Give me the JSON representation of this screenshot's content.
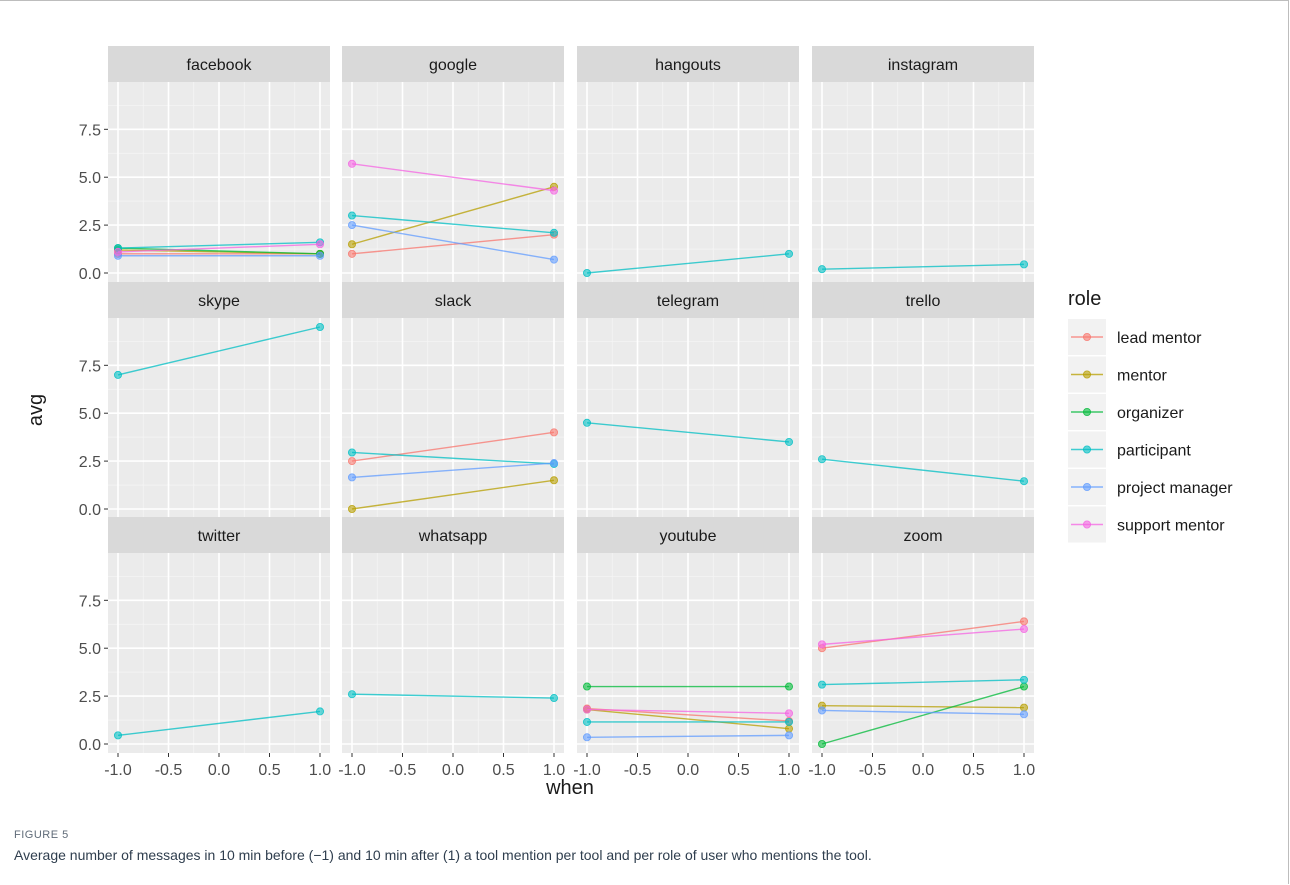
{
  "chart_data": {
    "type": "line",
    "facet_wrap": "tool",
    "ncol": 4,
    "xlabel": "when",
    "ylabel": "avg",
    "xlim": [
      -1.0,
      1.0
    ],
    "ylim": [
      0.0,
      9.5
    ],
    "x_ticks": [
      -1.0,
      -0.5,
      0.0,
      0.5,
      1.0
    ],
    "x_tick_labels": [
      "-1.0",
      "-0.5",
      "0.0",
      "0.5",
      "1.0"
    ],
    "y_ticks": [
      0.0,
      2.5,
      5.0,
      7.5
    ],
    "y_tick_labels": [
      "0.0",
      "2.5",
      "5.0",
      "7.5"
    ],
    "grid": true,
    "legend": {
      "title": "role",
      "position": "right",
      "entries": [
        {
          "role": "lead mentor",
          "color": "#F8766D"
        },
        {
          "role": "mentor",
          "color": "#B79F00"
        },
        {
          "role": "organizer",
          "color": "#00BA38"
        },
        {
          "role": "participant",
          "color": "#00BFC4"
        },
        {
          "role": "project manager",
          "color": "#619CFF"
        },
        {
          "role": "support mentor",
          "color": "#F564E3"
        }
      ]
    },
    "facets": [
      {
        "tool": "facebook",
        "series": [
          {
            "role": "lead mentor",
            "values": [
              1.0,
              1.0
            ]
          },
          {
            "role": "mentor",
            "values": [
              1.2,
              1.0
            ]
          },
          {
            "role": "organizer",
            "values": [
              1.3,
              1.0
            ]
          },
          {
            "role": "participant",
            "values": [
              1.3,
              1.6
            ]
          },
          {
            "role": "project manager",
            "values": [
              0.9,
              0.9
            ]
          },
          {
            "role": "support mentor",
            "values": [
              1.1,
              1.5
            ]
          }
        ]
      },
      {
        "tool": "google",
        "series": [
          {
            "role": "lead mentor",
            "values": [
              1.0,
              2.0
            ]
          },
          {
            "role": "mentor",
            "values": [
              1.5,
              4.5
            ]
          },
          {
            "role": "participant",
            "values": [
              3.0,
              2.1
            ]
          },
          {
            "role": "project manager",
            "values": [
              2.5,
              0.7
            ]
          },
          {
            "role": "support mentor",
            "values": [
              5.7,
              4.3
            ]
          }
        ]
      },
      {
        "tool": "hangouts",
        "series": [
          {
            "role": "participant",
            "values": [
              0.0,
              1.0
            ]
          }
        ]
      },
      {
        "tool": "instagram",
        "series": [
          {
            "role": "participant",
            "values": [
              0.2,
              0.45
            ]
          }
        ]
      },
      {
        "tool": "skype",
        "series": [
          {
            "role": "participant",
            "values": [
              7.0,
              9.5
            ]
          }
        ]
      },
      {
        "tool": "slack",
        "series": [
          {
            "role": "lead mentor",
            "values": [
              2.5,
              4.0
            ]
          },
          {
            "role": "mentor",
            "values": [
              0.0,
              1.5
            ]
          },
          {
            "role": "participant",
            "values": [
              2.95,
              2.35
            ]
          },
          {
            "role": "project manager",
            "values": [
              1.65,
              2.4
            ]
          }
        ]
      },
      {
        "tool": "telegram",
        "series": [
          {
            "role": "participant",
            "values": [
              4.5,
              3.5
            ]
          }
        ]
      },
      {
        "tool": "trello",
        "series": [
          {
            "role": "participant",
            "values": [
              2.6,
              1.45
            ]
          }
        ]
      },
      {
        "tool": "twitter",
        "series": [
          {
            "role": "participant",
            "values": [
              0.45,
              1.7
            ]
          }
        ]
      },
      {
        "tool": "whatsapp",
        "series": [
          {
            "role": "participant",
            "values": [
              2.6,
              2.4
            ]
          }
        ]
      },
      {
        "tool": "youtube",
        "series": [
          {
            "role": "lead mentor",
            "values": [
              1.85,
              1.2
            ]
          },
          {
            "role": "mentor",
            "values": [
              1.8,
              0.8
            ]
          },
          {
            "role": "organizer",
            "values": [
              3.0,
              3.0
            ]
          },
          {
            "role": "participant",
            "values": [
              1.15,
              1.15
            ]
          },
          {
            "role": "project manager",
            "values": [
              0.35,
              0.45
            ]
          },
          {
            "role": "support mentor",
            "values": [
              1.8,
              1.6
            ]
          }
        ]
      },
      {
        "tool": "zoom",
        "series": [
          {
            "role": "lead mentor",
            "values": [
              5.0,
              6.4
            ]
          },
          {
            "role": "mentor",
            "values": [
              2.0,
              1.9
            ]
          },
          {
            "role": "organizer",
            "values": [
              0.0,
              3.0
            ]
          },
          {
            "role": "participant",
            "values": [
              3.1,
              3.35
            ]
          },
          {
            "role": "project manager",
            "values": [
              1.75,
              1.55
            ]
          },
          {
            "role": "support mentor",
            "values": [
              5.2,
              6.0
            ]
          }
        ]
      }
    ]
  },
  "caption": {
    "label": "FIGURE 5",
    "text": "Average number of messages in 10 min before (−1) and 10 min after (1) a tool mention per tool and per role of user who mentions the tool."
  }
}
